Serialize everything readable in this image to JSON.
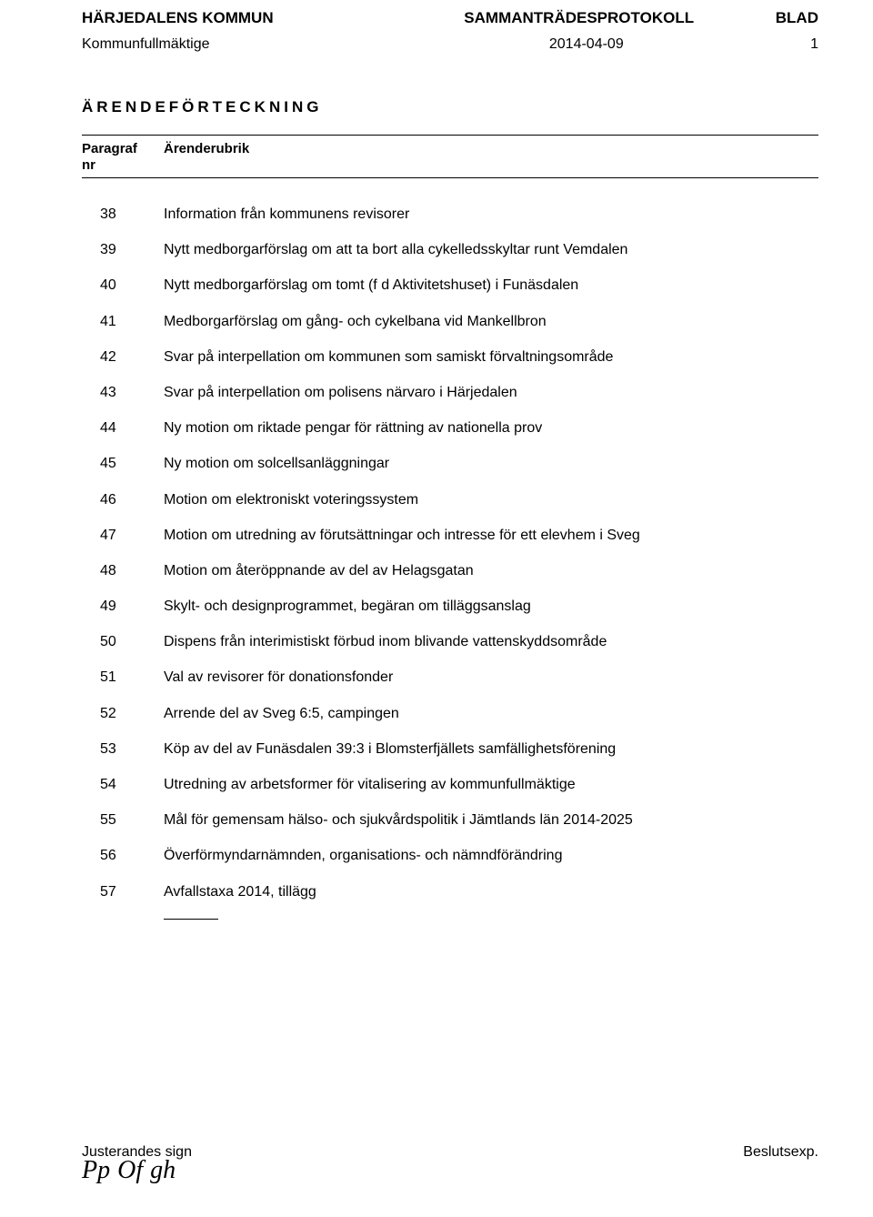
{
  "header": {
    "org": "HÄRJEDALENS KOMMUN",
    "doc_type": "SAMMANTRÄDESPROTOKOLL",
    "blad_label": "BLAD",
    "body": "Kommunfullmäktige",
    "date": "2014-04-09",
    "page_no": "1"
  },
  "section_title": "ÄRENDEFÖRTECKNING",
  "table_head": {
    "col1_line1": "Paragraf",
    "col1_line2": "nr",
    "col2": "Ärenderubrik"
  },
  "items": [
    {
      "nr": "38",
      "title": "Information från kommunens revisorer"
    },
    {
      "nr": "39",
      "title": "Nytt medborgarförslag om att ta bort alla cykelledsskyltar runt Vemdalen"
    },
    {
      "nr": "40",
      "title": "Nytt medborgarförslag om tomt (f d Aktivitetshuset) i Funäsdalen"
    },
    {
      "nr": "41",
      "title": "Medborgarförslag om gång- och cykelbana vid Mankellbron"
    },
    {
      "nr": "42",
      "title": "Svar på interpellation om kommunen som samiskt förvaltningsområde"
    },
    {
      "nr": "43",
      "title": "Svar på interpellation om polisens närvaro i Härjedalen"
    },
    {
      "nr": "44",
      "title": "Ny motion om riktade pengar för rättning av nationella prov"
    },
    {
      "nr": "45",
      "title": "Ny motion om solcellsanläggningar"
    },
    {
      "nr": "46",
      "title": "Motion om elektroniskt voteringssystem"
    },
    {
      "nr": "47",
      "title": "Motion om utredning av förutsättningar och intresse för ett elevhem i Sveg"
    },
    {
      "nr": "48",
      "title": "Motion om återöppnande av del av Helagsgatan"
    },
    {
      "nr": "49",
      "title": "Skylt- och designprogrammet, begäran om tilläggsanslag"
    },
    {
      "nr": "50",
      "title": "Dispens från interimistiskt förbud inom blivande vattenskyddsområde"
    },
    {
      "nr": "51",
      "title": "Val av revisorer för donationsfonder"
    },
    {
      "nr": "52",
      "title": "Arrende del av Sveg 6:5, campingen"
    },
    {
      "nr": "53",
      "title": "Köp av del av Funäsdalen 39:3 i Blomsterfjällets samfällighetsförening"
    },
    {
      "nr": "54",
      "title": "Utredning av arbetsformer för vitalisering av kommunfullmäktige"
    },
    {
      "nr": "55",
      "title": "Mål för gemensam hälso- och sjukvårdspolitik i Jämtlands län 2014-2025"
    },
    {
      "nr": "56",
      "title": "Överförmyndarnämnden, organisations- och nämndförändring"
    },
    {
      "nr": "57",
      "title": "Avfallstaxa 2014, tillägg"
    }
  ],
  "footer": {
    "sign_label": "Justerandes sign",
    "beslut_label": "Beslutsexp."
  }
}
